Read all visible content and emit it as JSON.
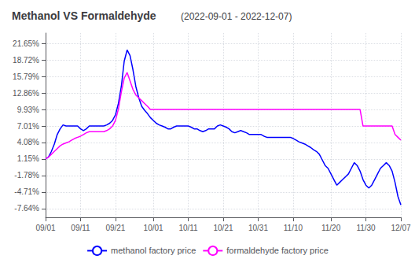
{
  "chart_data": {
    "type": "line",
    "title": "Methanol VS Formaldehyde",
    "subtitle": "(2022-09-01 - 2022-12-07)",
    "categories": [
      "09/01",
      null,
      null,
      null,
      null,
      null,
      null,
      null,
      null,
      null,
      null,
      null,
      "09/11",
      null,
      null,
      null,
      null,
      null,
      null,
      null,
      null,
      null,
      null,
      null,
      "09/21",
      null,
      null,
      null,
      null,
      null,
      null,
      null,
      null,
      null,
      null,
      null,
      null,
      "10/01",
      null,
      null,
      null,
      null,
      null,
      null,
      null,
      null,
      null,
      null,
      null,
      "10/11",
      null,
      null,
      null,
      null,
      null,
      null,
      null,
      null,
      null,
      null,
      null,
      "10/21",
      null,
      null,
      null,
      null,
      null,
      null,
      null,
      null,
      null,
      null,
      null,
      "10/31",
      null,
      null,
      null,
      null,
      null,
      null,
      null,
      null,
      null,
      null,
      null,
      "11/10",
      null,
      null,
      null,
      null,
      null,
      null,
      null,
      null,
      null,
      null,
      null,
      null,
      "11/20",
      null,
      null,
      null,
      null,
      null,
      null,
      null,
      null,
      null,
      null,
      null,
      "11/30",
      null,
      null,
      null,
      null,
      null,
      null,
      null,
      null,
      null,
      null,
      null,
      "12/07"
    ],
    "series": [
      {
        "name": "methanol factory price",
        "color": "#0000ff",
        "values": [
          1.15,
          1.5,
          2.5,
          3.8,
          5.5,
          6.5,
          7.2,
          7.0,
          7.0,
          7.0,
          7.0,
          7.0,
          6.5,
          6.2,
          6.5,
          7.0,
          7.0,
          7.0,
          7.0,
          7.0,
          7.0,
          7.2,
          7.5,
          8.0,
          9.0,
          11.0,
          14.0,
          18.5,
          20.5,
          19.5,
          17.0,
          14.0,
          12.0,
          10.5,
          9.8,
          9.2,
          8.5,
          8.0,
          7.5,
          7.2,
          7.0,
          6.8,
          6.5,
          6.5,
          6.8,
          7.0,
          7.0,
          7.0,
          7.0,
          7.0,
          6.8,
          6.5,
          6.5,
          6.2,
          6.0,
          6.2,
          6.5,
          6.5,
          6.5,
          7.0,
          7.2,
          7.0,
          6.8,
          6.5,
          6.0,
          5.8,
          6.0,
          6.2,
          6.0,
          5.8,
          5.5,
          5.5,
          5.5,
          5.5,
          5.5,
          5.2,
          5.0,
          5.0,
          5.0,
          5.0,
          5.0,
          5.0,
          5.0,
          5.0,
          5.0,
          4.8,
          4.5,
          4.2,
          4.0,
          3.8,
          3.5,
          3.2,
          2.8,
          2.5,
          2.0,
          1.0,
          0.0,
          -0.5,
          -1.5,
          -2.5,
          -3.5,
          -3.0,
          -2.5,
          -2.0,
          -1.5,
          -0.5,
          0.5,
          0.0,
          -1.0,
          -2.5,
          -3.5,
          -4.0,
          -3.5,
          -2.5,
          -1.5,
          -0.5,
          0.0,
          0.5,
          0.0,
          -1.0,
          -3.0,
          -5.5,
          -7.0
        ]
      },
      {
        "name": "formaldehyde factory price",
        "color": "#ff00ff",
        "values": [
          1.15,
          1.5,
          2.0,
          2.5,
          3.0,
          3.5,
          3.8,
          4.0,
          4.2,
          4.5,
          4.8,
          5.0,
          5.2,
          5.5,
          5.8,
          6.0,
          6.0,
          6.0,
          6.0,
          6.0,
          6.0,
          6.2,
          6.5,
          7.0,
          8.0,
          10.0,
          13.0,
          15.5,
          16.5,
          15.0,
          13.5,
          12.5,
          12.0,
          11.5,
          11.0,
          10.5,
          9.93,
          9.93,
          9.93,
          9.93,
          9.93,
          9.93,
          9.93,
          9.93,
          9.93,
          9.93,
          9.93,
          9.93,
          9.93,
          9.93,
          9.93,
          9.93,
          9.93,
          9.93,
          9.93,
          9.93,
          9.93,
          9.93,
          9.93,
          9.93,
          9.93,
          9.93,
          9.93,
          9.93,
          9.93,
          9.93,
          9.93,
          9.93,
          9.93,
          9.93,
          9.93,
          9.93,
          9.93,
          9.93,
          9.93,
          9.93,
          9.93,
          9.93,
          9.93,
          9.93,
          9.93,
          9.93,
          9.93,
          9.93,
          9.93,
          9.93,
          9.93,
          9.93,
          9.93,
          9.93,
          9.93,
          9.93,
          9.93,
          9.93,
          9.93,
          9.93,
          9.93,
          9.93,
          9.93,
          9.93,
          9.93,
          9.93,
          9.93,
          9.93,
          9.93,
          9.93,
          9.93,
          9.93,
          9.93,
          7.01,
          7.01,
          7.01,
          7.01,
          7.01,
          7.01,
          7.01,
          7.01,
          7.01,
          7.01,
          7.01,
          5.5,
          5.0,
          4.5
        ]
      }
    ],
    "ylim": [
      -9.2,
      23.5
    ],
    "yticks": [
      {
        "value": 21.65,
        "label": "21.65%"
      },
      {
        "value": 18.72,
        "label": "18.72%"
      },
      {
        "value": 15.79,
        "label": "15.79%"
      },
      {
        "value": 12.86,
        "label": "12.86%"
      },
      {
        "value": 9.93,
        "label": "9.93%"
      },
      {
        "value": 7.01,
        "label": "7.01%"
      },
      {
        "value": 4.08,
        "label": "4.08%"
      },
      {
        "value": 1.15,
        "label": "1.15%"
      },
      {
        "value": -1.78,
        "label": "-1.78%"
      },
      {
        "value": -4.71,
        "label": "-4.71%"
      },
      {
        "value": -7.64,
        "label": "-7.64%"
      }
    ],
    "grid": true,
    "legend": "bottom"
  }
}
